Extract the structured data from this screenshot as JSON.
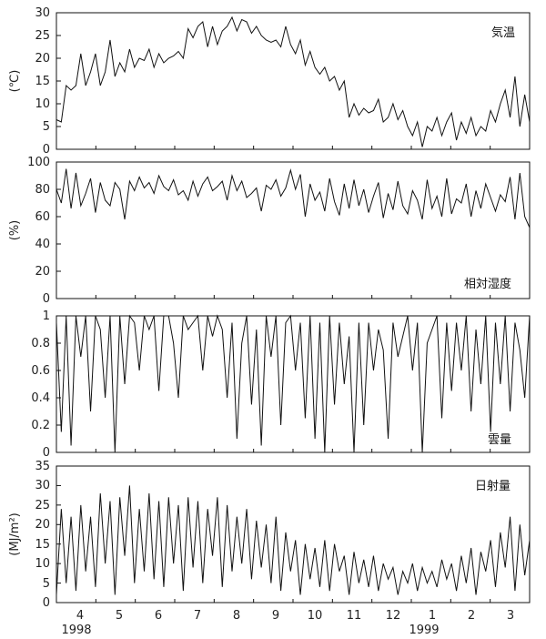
{
  "chart_data": [
    {
      "type": "line",
      "title": "気温",
      "ylabel": "(℃)",
      "ylim": [
        0,
        30
      ],
      "y_ticks": [
        "0",
        "5",
        "10",
        "15",
        "20",
        "25",
        "30"
      ],
      "x_tick_labels": [
        "4",
        "5",
        "6",
        "7",
        "8",
        "9",
        "10",
        "11",
        "12",
        "1",
        "2",
        "3"
      ],
      "year_labels": [
        "1998",
        "1999"
      ],
      "grid": false,
      "series": [
        {
          "values": [
            6.5,
            6.0,
            14.0,
            13.0,
            14.0,
            21.0,
            14.0,
            17.0,
            21.0,
            14.0,
            17.0,
            24.0,
            16.0,
            19.0,
            17.0,
            22.0,
            18.0,
            20.0,
            19.5,
            22.0,
            18.0,
            21.0,
            19.0,
            20.0,
            20.5,
            21.5,
            20.0,
            26.5,
            24.5,
            27.0,
            28.0,
            22.5,
            27.0,
            23.0,
            26.0,
            27.0,
            29.0,
            26.0,
            28.5,
            28.0,
            25.5,
            27.0,
            25.0,
            24.0,
            23.5,
            24.0,
            22.5,
            27.0,
            23.0,
            21.0,
            24.0,
            18.5,
            21.5,
            18.0,
            16.5,
            18.0,
            15.0,
            16.0,
            13.0,
            15.0,
            7.0,
            10.0,
            7.5,
            9.0,
            8.0,
            8.5,
            11.0,
            6.0,
            7.0,
            10.0,
            6.5,
            8.5,
            5.0,
            3.0,
            6.0,
            0.5,
            5.0,
            4.0,
            7.0,
            3.0,
            6.0,
            8.0,
            2.0,
            6.0,
            3.5,
            7.0,
            3.0,
            5.0,
            4.0,
            8.5,
            6.0,
            10.0,
            13.0,
            7.0,
            16.0,
            5.0,
            12.0,
            6.0
          ]
        }
      ]
    },
    {
      "type": "line",
      "title": "相対湿度",
      "ylabel": "(%)",
      "ylim": [
        0,
        100
      ],
      "y_ticks": [
        "0",
        "20",
        "40",
        "60",
        "80",
        "100"
      ],
      "grid": false,
      "series": [
        {
          "values": [
            80,
            70,
            95,
            66,
            92,
            68,
            77,
            88,
            63,
            85,
            72,
            68,
            85,
            80,
            58,
            86,
            79,
            89,
            81,
            85,
            77,
            90,
            82,
            79,
            87,
            76,
            79,
            72,
            86,
            75,
            84,
            89,
            79,
            82,
            86,
            72,
            90,
            79,
            86,
            74,
            77,
            81,
            64,
            83,
            80,
            87,
            75,
            81,
            94,
            80,
            91,
            60,
            84,
            72,
            78,
            64,
            88,
            71,
            61,
            84,
            66,
            87,
            68,
            80,
            63,
            75,
            85,
            59,
            77,
            65,
            86,
            68,
            62,
            79,
            72,
            58,
            87,
            66,
            75,
            60,
            88,
            62,
            73,
            70,
            84,
            60,
            79,
            66,
            84,
            74,
            64,
            76,
            71,
            89,
            58,
            92,
            60,
            52
          ]
        }
      ]
    },
    {
      "type": "line",
      "title": "雲量",
      "ylabel": "",
      "ylim": [
        0,
        1
      ],
      "y_ticks": [
        "0",
        "0.2",
        "0.4",
        "0.6",
        "0.8",
        "1"
      ],
      "grid": false,
      "series": [
        {
          "values": [
            0.95,
            0.15,
            1.0,
            0.05,
            1.0,
            0.7,
            1.0,
            0.3,
            1.0,
            0.9,
            0.4,
            1.0,
            0.0,
            1.0,
            0.5,
            1.0,
            0.95,
            0.6,
            1.0,
            0.9,
            1.0,
            0.45,
            1.0,
            1.0,
            0.8,
            0.4,
            1.0,
            0.9,
            0.95,
            1.0,
            0.6,
            1.0,
            0.85,
            1.0,
            0.9,
            0.4,
            0.95,
            0.1,
            0.8,
            1.0,
            0.35,
            0.9,
            0.05,
            1.0,
            0.7,
            1.0,
            0.2,
            0.95,
            1.0,
            0.6,
            0.95,
            0.25,
            1.0,
            0.1,
            0.95,
            0.0,
            1.0,
            0.35,
            0.95,
            0.5,
            0.85,
            0.0,
            0.95,
            0.2,
            0.95,
            0.6,
            0.9,
            0.75,
            0.1,
            0.95,
            0.7,
            0.85,
            1.0,
            0.6,
            0.95,
            0.0,
            0.8,
            0.9,
            1.0,
            0.25,
            0.95,
            0.45,
            0.95,
            0.6,
            1.0,
            0.3,
            0.9,
            0.5,
            1.0,
            0.15,
            0.95,
            0.5,
            1.0,
            0.3,
            0.95,
            0.75,
            0.4,
            1.0
          ]
        }
      ]
    },
    {
      "type": "line",
      "title": "日射量",
      "ylabel": "(MJ/m²)",
      "ylim": [
        0,
        35
      ],
      "y_ticks": [
        "0",
        "5",
        "10",
        "15",
        "20",
        "25",
        "30",
        "35"
      ],
      "grid": false,
      "series": [
        {
          "values": [
            2,
            24,
            5,
            22,
            3,
            25,
            8,
            22,
            4,
            28,
            10,
            26,
            2,
            27,
            12,
            30,
            5,
            24,
            8,
            28,
            6,
            26,
            4,
            27,
            10,
            25,
            3,
            27,
            9,
            26,
            5,
            24,
            12,
            27,
            4,
            25,
            8,
            22,
            10,
            24,
            6,
            21,
            9,
            20,
            5,
            22,
            3,
            18,
            8,
            16,
            2,
            15,
            6,
            14,
            4,
            16,
            3,
            15,
            8,
            12,
            2,
            13,
            5,
            11,
            4,
            12,
            3,
            10,
            6,
            9,
            2,
            8,
            5,
            10,
            3,
            9,
            5,
            8,
            4,
            11,
            6,
            10,
            3,
            12,
            5,
            14,
            2,
            13,
            8,
            16,
            4,
            18,
            9,
            22,
            3,
            20,
            7,
            16
          ]
        }
      ]
    }
  ]
}
